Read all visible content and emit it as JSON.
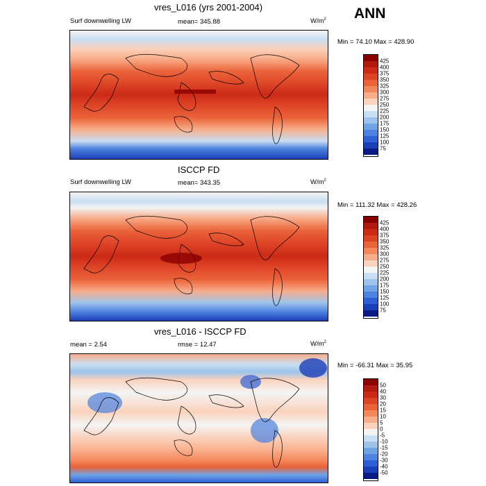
{
  "season": "ANN",
  "panels": [
    {
      "title": "vres_L016 (yrs 2001-2004)",
      "left_label": "Surf downwelling LW",
      "center_label": "mean= 345.88",
      "units": "W/m",
      "units_sup": "2",
      "minmax": "Min =  74.10 Max = 428.90",
      "levels": [
        "425",
        "400",
        "375",
        "350",
        "325",
        "300",
        "275",
        "250",
        "225",
        "200",
        "175",
        "150",
        "125",
        "100",
        "75"
      ]
    },
    {
      "title": "ISCCP FD",
      "left_label": "Surf downwelling LW",
      "center_label": "mean= 343.35",
      "units": "W/m",
      "units_sup": "2",
      "minmax": "Min = 111.32 Max = 428.26",
      "levels": [
        "425",
        "400",
        "375",
        "350",
        "325",
        "300",
        "275",
        "250",
        "225",
        "200",
        "175",
        "150",
        "125",
        "100",
        "75"
      ]
    },
    {
      "title": "vres_L016 - ISCCP FD",
      "left_label": "mean =   2.54",
      "center_label": "rmse =  12.47",
      "units": "W/m",
      "units_sup": "2",
      "minmax": "Min = -66.31 Max =  35.95",
      "levels": [
        "50",
        "40",
        "30",
        "20",
        "15",
        "10",
        "5",
        "0",
        "-5",
        "-10",
        "-15",
        "-20",
        "-30",
        "-40",
        "-50"
      ]
    }
  ],
  "colors": {
    "abs_scale": [
      "#8b0000",
      "#b2190f",
      "#cc2a17",
      "#dd4426",
      "#ea6339",
      "#f4875a",
      "#f8ad8a",
      "#fbd2bd",
      "#f4f4f4",
      "#c8def2",
      "#9dc3eb",
      "#6fa3e6",
      "#4d82e0",
      "#2f5fd6",
      "#1b3fb8",
      "#0a1a86"
    ],
    "diff_scale": [
      "#8b0000",
      "#b2190f",
      "#cc2a17",
      "#dd4426",
      "#ea6339",
      "#f4875a",
      "#f8ad8a",
      "#fbd2bd",
      "#f4f4f4",
      "#c8def2",
      "#9dc3eb",
      "#6fa3e6",
      "#4d82e0",
      "#2f5fd6",
      "#1b3fb8",
      "#0a1a86"
    ]
  }
}
